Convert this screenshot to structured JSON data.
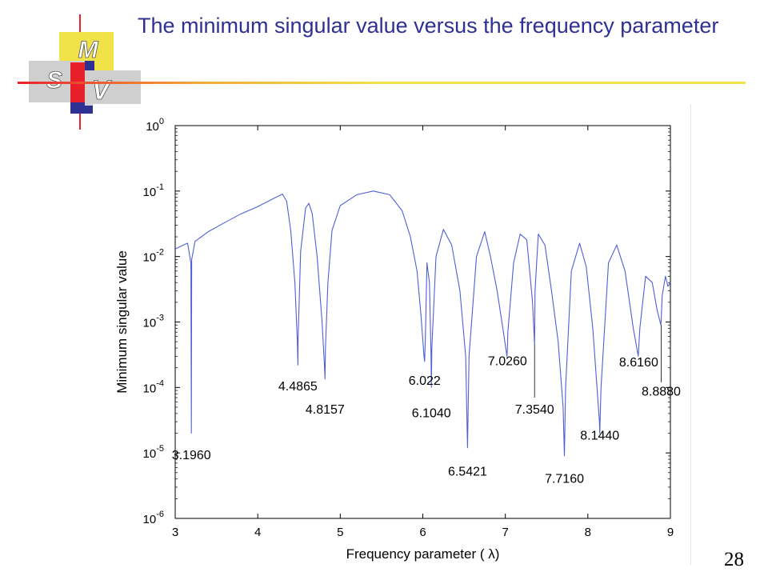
{
  "slide": {
    "title": "The minimum singular value versus the frequency parameter",
    "page_number": "28"
  },
  "logo": {
    "letters": [
      "M",
      "S",
      "V"
    ]
  },
  "colors": {
    "title": "#2e3192",
    "curve": "#4f5fd6",
    "rule": "#f2e24a",
    "logo_red": "#e8202a",
    "logo_navy": "#2e3192",
    "logo_yellow": "#f2e24a"
  },
  "chart_data": {
    "type": "line",
    "xlabel": "Frequency parameter ( λ)",
    "ylabel": "Minimum singular value",
    "xlim": [
      3,
      9
    ],
    "ylim": [
      1e-06,
      1
    ],
    "y_scale": "log",
    "x_ticks": [
      "3",
      "4",
      "5",
      "6",
      "7",
      "8",
      "9"
    ],
    "y_ticks": [
      {
        "base": "10",
        "exp": "0"
      },
      {
        "base": "10",
        "exp": "-1"
      },
      {
        "base": "10",
        "exp": "-2"
      },
      {
        "base": "10",
        "exp": "-3"
      },
      {
        "base": "10",
        "exp": "-4"
      },
      {
        "base": "10",
        "exp": "-5"
      },
      {
        "base": "10",
        "exp": "-6"
      }
    ],
    "grid": false,
    "series": [
      {
        "x": [
          3.0,
          3.1,
          3.15,
          3.19,
          3.196,
          3.2,
          3.24,
          3.4,
          3.6,
          3.8,
          4.0,
          4.2,
          4.3,
          4.35,
          4.4,
          4.45,
          4.48,
          4.4865,
          4.49,
          4.52,
          4.58,
          4.62,
          4.66,
          4.72,
          4.78,
          4.81,
          4.8157,
          4.82,
          4.85,
          4.9,
          5.0,
          5.2,
          5.4,
          5.6,
          5.75,
          5.85,
          5.93,
          5.98,
          6.015,
          6.022,
          6.03,
          6.05,
          6.08,
          6.1,
          6.104,
          6.11,
          6.16,
          6.25,
          6.35,
          6.45,
          6.52,
          6.5421,
          6.56,
          6.65,
          6.75,
          6.82,
          6.9,
          6.97,
          7.02,
          7.026,
          7.03,
          7.1,
          7.18,
          7.26,
          7.33,
          7.354,
          7.36,
          7.4,
          7.48,
          7.56,
          7.64,
          7.7,
          7.716,
          7.73,
          7.8,
          7.9,
          7.98,
          8.06,
          8.14,
          8.144,
          8.16,
          8.25,
          8.35,
          8.45,
          8.55,
          8.61,
          8.616,
          8.63,
          8.7,
          8.78,
          8.84,
          8.885,
          8.888,
          8.9,
          8.94,
          8.97,
          9.0
        ],
        "y": [
          0.013,
          0.015,
          0.016,
          0.008,
          2e-05,
          0.009,
          0.017,
          0.024,
          0.033,
          0.045,
          0.058,
          0.078,
          0.09,
          0.07,
          0.025,
          0.004,
          0.0005,
          0.00022,
          0.0006,
          0.012,
          0.055,
          0.065,
          0.045,
          0.01,
          0.001,
          0.0002,
          0.000135,
          0.0004,
          0.004,
          0.025,
          0.06,
          0.088,
          0.1,
          0.088,
          0.05,
          0.02,
          0.006,
          0.0012,
          0.0003,
          0.00025,
          0.0005,
          0.008,
          0.004,
          0.0003,
          0.0001,
          0.0004,
          0.01,
          0.026,
          0.015,
          0.003,
          0.0003,
          1.2e-05,
          0.0003,
          0.01,
          0.024,
          0.01,
          0.003,
          0.0008,
          0.0003,
          0.0004,
          0.0007,
          0.008,
          0.022,
          0.018,
          0.002,
          0.00045,
          0.003,
          0.022,
          0.015,
          0.003,
          0.0005,
          5e-05,
          9e-06,
          0.0001,
          0.006,
          0.016,
          0.007,
          0.0008,
          3e-05,
          2e-05,
          0.0001,
          0.008,
          0.015,
          0.006,
          0.0008,
          0.0003,
          0.0004,
          0.0008,
          0.005,
          0.004,
          0.0015,
          0.0009,
          0.001,
          0.0025,
          0.005,
          0.0035,
          0.004
        ]
      }
    ],
    "annotations": [
      {
        "text": "3.1960",
        "x": 3.196,
        "y": 8e-06
      },
      {
        "text": "4.4865",
        "x": 4.4865,
        "y": 9e-05
      },
      {
        "text": "4.8157",
        "x": 4.8157,
        "y": 4e-05
      },
      {
        "text": "6.022",
        "x": 6.022,
        "y": 0.00011
      },
      {
        "text": "6.1040",
        "x": 6.104,
        "y": 3.5e-05
      },
      {
        "text": "6.5421",
        "x": 6.5421,
        "y": 4.5e-06
      },
      {
        "text": "7.0260",
        "x": 7.026,
        "y": 0.00022
      },
      {
        "text": "7.3540",
        "x": 7.354,
        "y": 4e-05
      },
      {
        "text": "7.7160",
        "x": 7.716,
        "y": 3.5e-06
      },
      {
        "text": "8.1440",
        "x": 8.144,
        "y": 1.6e-05
      },
      {
        "text": "8.6160",
        "x": 8.616,
        "y": 0.00021
      },
      {
        "text": "8.8880",
        "x": 8.888,
        "y": 7.5e-05
      }
    ]
  }
}
